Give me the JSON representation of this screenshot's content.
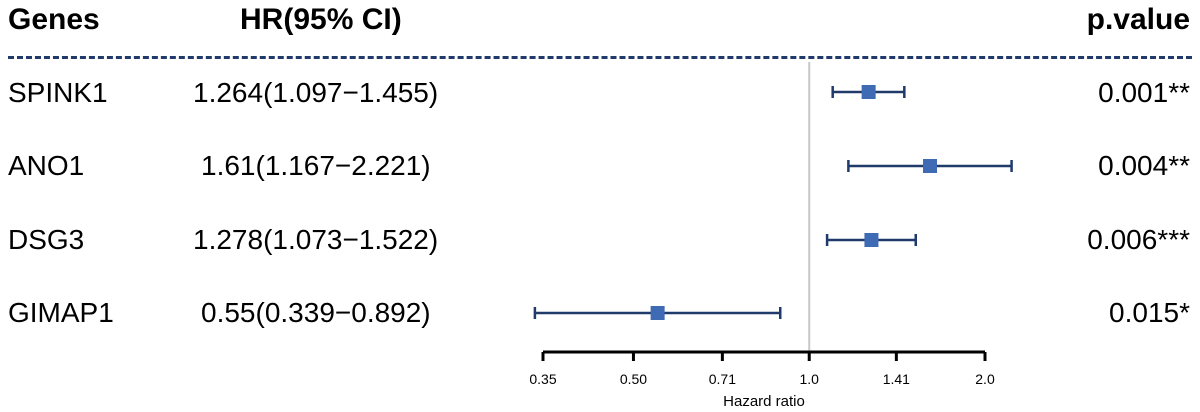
{
  "header": {
    "genes": "Genes",
    "hr": "HR(95% CI)",
    "pvalue": "p.value"
  },
  "rows": [
    {
      "gene": "SPINK1",
      "hr_text": "1.264(1.097−1.455)",
      "p_text": "0.001**"
    },
    {
      "gene": "ANO1",
      "hr_text": "1.61(1.167−2.221)",
      "p_text": "0.004**"
    },
    {
      "gene": "DSG3",
      "hr_text": "1.278(1.073−1.522)",
      "p_text": "0.006***"
    },
    {
      "gene": "GIMAP1",
      "hr_text": "0.55(0.339−0.892)",
      "p_text": "0.015*"
    }
  ],
  "chart_data": {
    "type": "forest",
    "scale": "log",
    "xlabel": "Hazard ratio",
    "xlim": [
      0.35,
      2.0
    ],
    "xticks": [
      0.35,
      0.5,
      0.71,
      1.0,
      1.41,
      2.0
    ],
    "xtick_labels": [
      "0.35",
      "0.50",
      "0.71",
      "1.0",
      "1.41",
      "2.0"
    ],
    "reference_line": 1.0,
    "categories": [
      "SPINK1",
      "ANO1",
      "DSG3",
      "GIMAP1"
    ],
    "hr": [
      1.264,
      1.61,
      1.278,
      0.55
    ],
    "lower": [
      1.097,
      1.167,
      1.073,
      0.339
    ],
    "upper": [
      1.455,
      2.221,
      1.522,
      0.892
    ],
    "marker_color": "#3f6ab4",
    "ci_color": "#1f3a6b",
    "ref_line_color": "#c8c8c8"
  }
}
